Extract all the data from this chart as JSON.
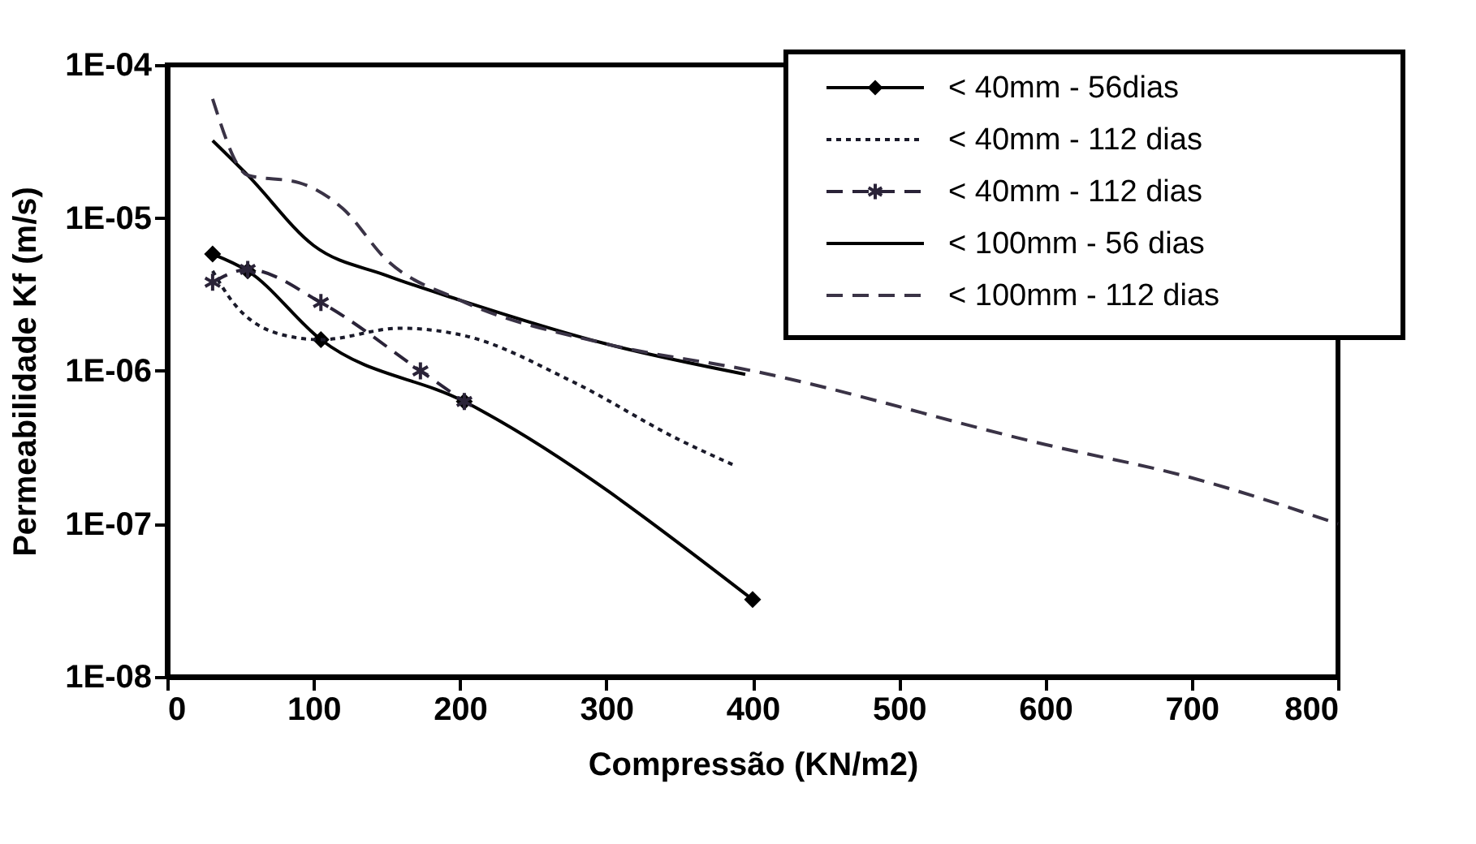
{
  "chart_data": {
    "type": "line",
    "xlabel": "Compressão (KN/m2)",
    "ylabel": "Permeabilidade Kf (m/s)",
    "log": "y",
    "grid": false,
    "legend": "top right",
    "xlim": [
      0,
      800
    ],
    "xticks": [
      0,
      100,
      200,
      300,
      400,
      500,
      600,
      700,
      800
    ],
    "ylim": [
      1e-08,
      0.0001
    ],
    "yticks": [
      {
        "value": 1e-08,
        "label": "1E-08"
      },
      {
        "value": 1e-07,
        "label": "1E-07"
      },
      {
        "value": 1e-06,
        "label": "1E-06"
      },
      {
        "value": 1e-05,
        "label": "1E-05"
      },
      {
        "value": 0.0001,
        "label": "1E-04"
      }
    ],
    "series": [
      {
        "name": "< 40mm - 56dias",
        "color": "#000000",
        "line_style": "solid",
        "marker": "diamond",
        "x": [
          31,
          55,
          105,
          203,
          400
        ],
        "values": [
          5.8e-06,
          4.5e-06,
          1.6e-06,
          6.3e-07,
          3.2e-08
        ]
      },
      {
        "name": "< 40mm - 112 dias",
        "color": "#1a1a2a",
        "line_style": "dotted",
        "marker": "none",
        "x": [
          31,
          45,
          81,
          105,
          159,
          203,
          277,
          351,
          388
        ],
        "values": [
          4.5e-06,
          2.8e-06,
          1.7e-06,
          1.6e-06,
          1.9e-06,
          1.7e-06,
          8.5e-07,
          3.5e-07,
          2.4e-07
        ]
      },
      {
        "name": "< 40mm - 112 dias",
        "color": "#2a2338",
        "line_style": "dashed",
        "marker": "cross",
        "x": [
          31,
          55,
          105,
          173,
          203
        ],
        "values": [
          3.8e-06,
          4.6e-06,
          2.8e-06,
          1e-06,
          6.3e-07
        ]
      },
      {
        "name": "< 100mm - 56 dias",
        "color": "#000000",
        "line_style": "solid",
        "marker": "none",
        "x": [
          31,
          55,
          100,
          150,
          200,
          300,
          395
        ],
        "values": [
          3.2e-05,
          1.9e-05,
          6.6e-06,
          4.2e-06,
          2.9e-06,
          1.5e-06,
          9.5e-07
        ]
      },
      {
        "name": "< 100mm - 112 dias",
        "color": "#3a3346",
        "line_style": "dashed",
        "marker": "none",
        "x": [
          31,
          55,
          90,
          120,
          150,
          200,
          300,
          400,
          600,
          700,
          800
        ],
        "values": [
          6e-05,
          1.9e-05,
          1.7e-05,
          1.15e-05,
          5.3e-06,
          2.9e-06,
          1.5e-06,
          1e-06,
          3.3e-07,
          2e-07,
          1e-07
        ]
      }
    ]
  }
}
